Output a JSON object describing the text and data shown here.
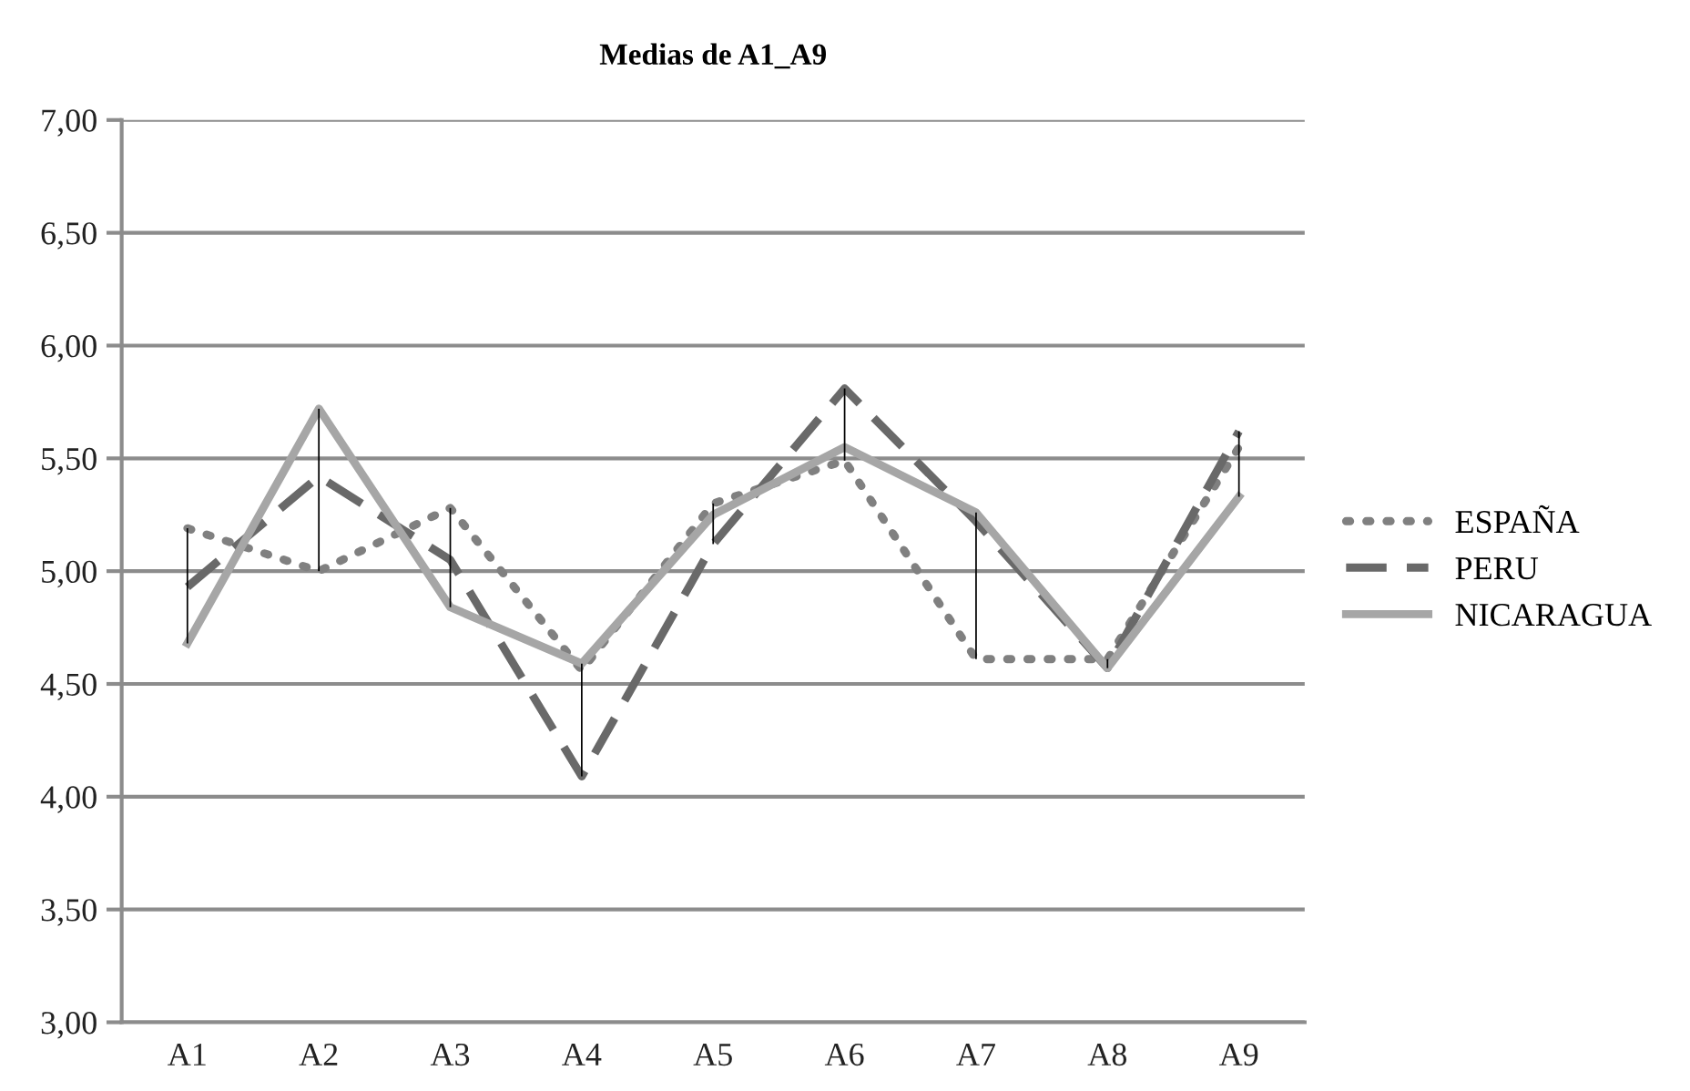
{
  "chart_data": {
    "type": "line",
    "title": "Medias de A1_A9",
    "categories": [
      "A1",
      "A2",
      "A3",
      "A4",
      "A5",
      "A6",
      "A7",
      "A8",
      "A9"
    ],
    "series": [
      {
        "name": "ESPAÑA",
        "color": "#808080",
        "line_style": "dotted",
        "values": [
          5.19,
          5.0,
          5.28,
          4.56,
          5.3,
          5.49,
          4.61,
          4.61,
          5.55
        ]
      },
      {
        "name": "PERU",
        "color": "#696969",
        "line_style": "dashed",
        "values": [
          4.93,
          5.42,
          5.05,
          4.09,
          5.12,
          5.81,
          5.22,
          4.57,
          5.62
        ]
      },
      {
        "name": "NICARAGUA",
        "color": "#a6a6a6",
        "line_style": "solid",
        "values": [
          4.68,
          5.72,
          4.84,
          4.59,
          5.25,
          5.55,
          5.26,
          4.57,
          5.33
        ]
      },
      {
        "type": "bar",
        "color": "#000000",
        "base": [
          4.68,
          5.0,
          4.84,
          4.09,
          5.12,
          5.49,
          4.61,
          4.57,
          5.33
        ],
        "values": [
          0.51,
          0.72,
          0.44,
          0.5,
          0.18,
          0.32,
          0.65,
          0.04,
          0.29
        ]
      }
    ],
    "ylim": [
      3.0,
      7.0
    ],
    "yticks": [
      {
        "value": 3,
        "label": "3,00"
      },
      {
        "value": 3.5,
        "label": "3,50"
      },
      {
        "value": 4,
        "label": "4,00"
      },
      {
        "value": 4.5,
        "label": "4,50"
      },
      {
        "value": 5,
        "label": "5,00"
      },
      {
        "value": 5.5,
        "label": "5,50"
      },
      {
        "value": 6,
        "label": "6,00"
      },
      {
        "value": 6.5,
        "label": "6,50"
      },
      {
        "value": 7,
        "label": "7,00"
      }
    ],
    "grid": "y",
    "legend": "right",
    "marker": "none"
  }
}
